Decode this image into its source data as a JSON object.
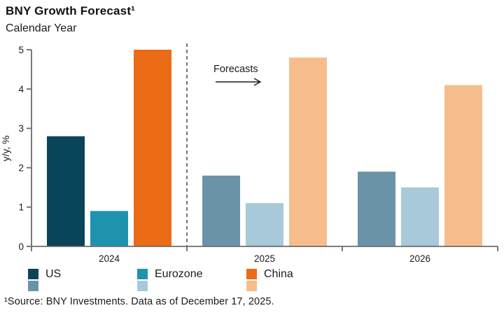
{
  "header": {
    "title": "BNY Growth Forecast¹",
    "subtitle": "Calendar Year"
  },
  "chart_data": {
    "type": "bar",
    "title": "BNY Growth Forecast¹",
    "subtitle": "Calendar Year",
    "xlabel": "",
    "ylabel": "y/y, %",
    "ylim": [
      0,
      5
    ],
    "yticks": [
      0,
      1,
      2,
      3,
      4,
      5
    ],
    "grid": false,
    "legend_position": "bottom",
    "categories": [
      "2024",
      "2025",
      "2026"
    ],
    "series": [
      {
        "name": "US",
        "values": [
          2.8,
          1.8,
          1.9
        ],
        "color_actual": "#0a4459",
        "color_forecast": "#6a93a8"
      },
      {
        "name": "Eurozone",
        "values": [
          0.9,
          1.1,
          1.5
        ],
        "color_actual": "#1d93ae",
        "color_forecast": "#a7c9d9"
      },
      {
        "name": "China",
        "values": [
          5.0,
          4.8,
          4.1
        ],
        "color_actual": "#ec6b17",
        "color_forecast": "#f7bc8c"
      }
    ],
    "actual_categories": [
      "2024"
    ],
    "forecast_categories": [
      "2025",
      "2026"
    ],
    "separator": {
      "style": "dashed-vertical",
      "after_category": "2024"
    },
    "annotation": {
      "text": "Forecasts",
      "arrow": "right"
    },
    "axis_color": "#6b6b6b",
    "text_color": "#1a1a1a"
  },
  "footnote": {
    "text": "¹Source: BNY Investments. Data as of December 17, 2025."
  }
}
